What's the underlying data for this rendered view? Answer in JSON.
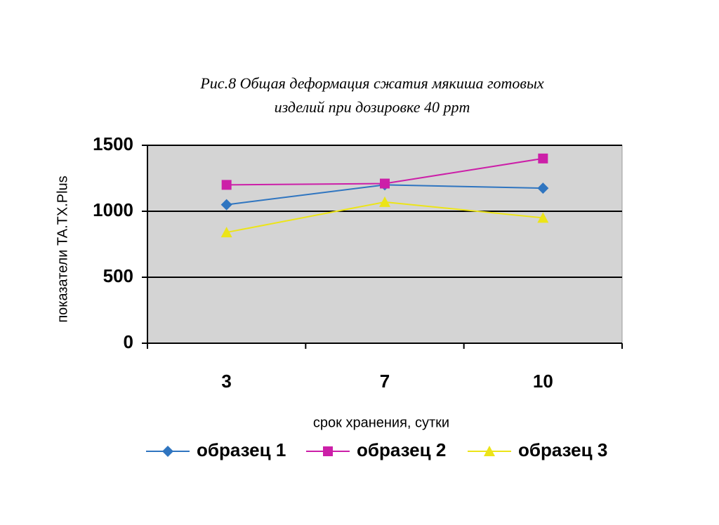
{
  "chart_data": {
    "type": "line",
    "title": [
      "Рис.8 Общая деформация сжатия мякиша готовых",
      "изделий при дозировке 40 ppm"
    ],
    "x_label": "срок хранения, сутки",
    "y_label": "показатели TA.TX.Plus",
    "categories": [
      "3",
      "7",
      "10"
    ],
    "series": [
      {
        "name": "образец 1",
        "color": "#2f75c0",
        "marker": "diamond",
        "values": [
          1050,
          1200,
          1175
        ]
      },
      {
        "name": "образец 2",
        "color": "#cc1fa8",
        "marker": "square",
        "values": [
          1200,
          1210,
          1400
        ]
      },
      {
        "name": "образец 3",
        "color": "#ece418",
        "marker": "triangle",
        "values": [
          840,
          1070,
          950
        ]
      }
    ],
    "ylim": [
      0,
      1500
    ],
    "yticks": [
      0,
      500,
      1000,
      1500
    ],
    "grid": true,
    "legend": "bottom"
  }
}
